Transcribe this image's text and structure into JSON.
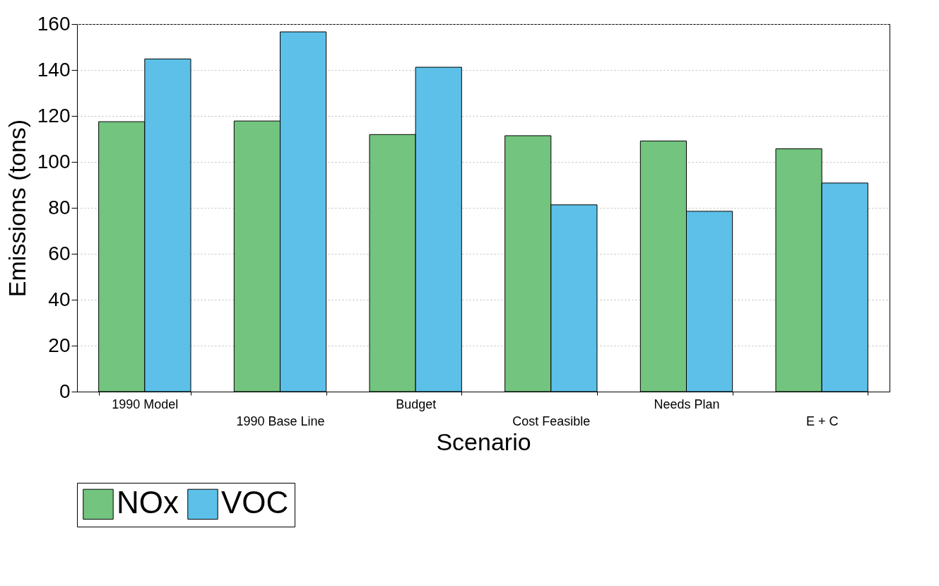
{
  "chart_data": {
    "type": "bar",
    "xlabel": "Scenario",
    "ylabel": "Emissions (tons)",
    "categories": [
      "1990 Model",
      "1990 Base Line",
      "Budget",
      "Cost Feasible",
      "Needs Plan",
      "E + C"
    ],
    "series": [
      {
        "name": "NOx",
        "color": "#72c47e",
        "values": [
          117.5,
          117.8,
          111.9,
          111.4,
          109.1,
          105.7
        ]
      },
      {
        "name": "VOC",
        "color": "#5cc0e8",
        "values": [
          144.8,
          156.6,
          141.2,
          81.3,
          78.5,
          90.8
        ]
      }
    ],
    "ylim": [
      0,
      160
    ],
    "yticks": [
      0,
      20,
      40,
      60,
      80,
      100,
      120,
      140,
      160
    ],
    "grid": "y",
    "legend": "bottom"
  }
}
